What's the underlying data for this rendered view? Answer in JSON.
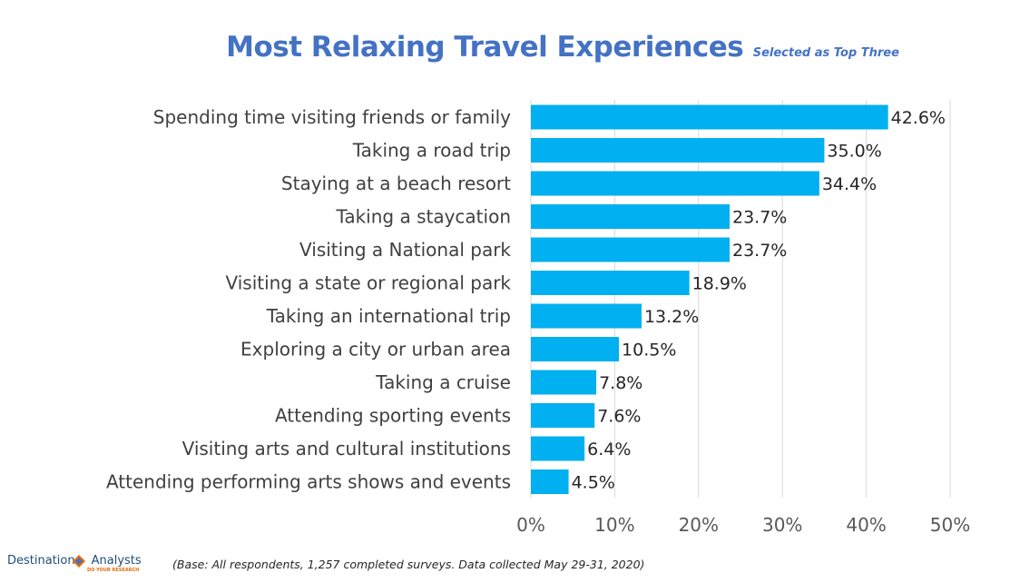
{
  "header": {
    "title": "Most Relaxing Travel Experiences",
    "subtitle": "Selected as Top Three"
  },
  "footer": {
    "note": "(Base: All respondents, 1,257 completed surveys. Data collected May 29-31, 2020)",
    "logo": {
      "word1": "Destination",
      "word2": "Analysts",
      "tagline": "DO YOUR RESEARCH",
      "icon": "diamond-logo-icon"
    }
  },
  "colors": {
    "title": "#4472c4",
    "bar": "#00b0f0",
    "grid": "#d9d9d9",
    "logo_blue": "#1f4e79",
    "logo_orange": "#e36c09"
  },
  "chart_data": {
    "type": "bar",
    "orientation": "horizontal",
    "title": "Most Relaxing Travel Experiences",
    "subtitle": "Selected as Top Three",
    "categories": [
      "Spending time visiting friends or family",
      "Taking a road trip",
      "Staying at a beach resort",
      "Taking a staycation",
      "Visiting a National park",
      "Visiting a state or regional park",
      "Taking an international trip",
      "Exploring a city or urban area",
      "Taking a cruise",
      "Attending sporting events",
      "Visiting arts and cultural institutions",
      "Attending performing arts shows and events"
    ],
    "values": [
      42.6,
      35.0,
      34.4,
      23.7,
      23.7,
      18.9,
      13.2,
      10.5,
      7.8,
      7.6,
      6.4,
      4.5
    ],
    "data_labels": [
      "42.6%",
      "35.0%",
      "34.4%",
      "23.7%",
      "23.7%",
      "18.9%",
      "13.2%",
      "10.5%",
      "7.8%",
      "7.6%",
      "6.4%",
      "4.5%"
    ],
    "xlim": [
      0,
      50
    ],
    "x_ticks": [
      0,
      10,
      20,
      30,
      40,
      50
    ],
    "x_tick_labels": [
      "0%",
      "10%",
      "20%",
      "30%",
      "40%",
      "50%"
    ],
    "xlabel": "",
    "ylabel": "",
    "grid": "vertical",
    "legend": "none"
  }
}
